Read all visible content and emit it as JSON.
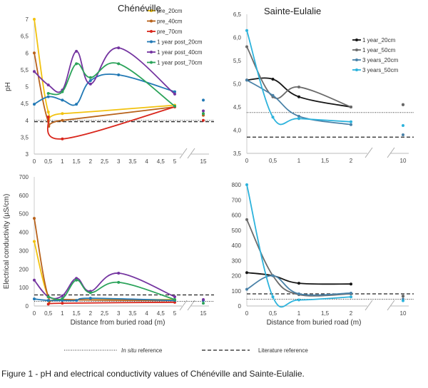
{
  "caption": "Figure 1 - pH and electrical conductivity values of Chénéville and Sainte-Eulalie.",
  "reference_legend": {
    "in_situ_italic": "In situ",
    "in_situ_rest": " reference",
    "literature": "Literature reference"
  },
  "chart_data": [
    {
      "id": "chen_ph",
      "type": "line",
      "title": "Chénéville",
      "ylabel": "pH",
      "xlabel": "",
      "ylim": [
        3,
        7
      ],
      "yticks": [
        "3",
        "3,5",
        "4",
        "4,5",
        "5",
        "5,5",
        "6",
        "6,5",
        "7"
      ],
      "xticks": [
        "0",
        "0,5",
        "1",
        "1,5",
        "2",
        "2,5",
        "3",
        "3,5",
        "4",
        "4,5",
        "5",
        "15"
      ],
      "x_break": [
        5,
        15
      ],
      "legend": "top-right",
      "references": {
        "in_situ": 4.0,
        "literature": 3.96
      },
      "series": [
        {
          "name": "pre_20cm",
          "color": "#f2c20f",
          "x": [
            0,
            0.5,
            1,
            5,
            15
          ],
          "y": [
            7.0,
            4.25,
            4.2,
            4.45,
            4.2
          ]
        },
        {
          "name": "pre_40cm",
          "color": "#b8621b",
          "x": [
            0,
            0.5,
            1,
            5,
            15
          ],
          "y": [
            6.0,
            3.97,
            4.0,
            4.4,
            4.15
          ]
        },
        {
          "name": "pre_70cm",
          "color": "#d9261c",
          "x": [
            0.5,
            1,
            5,
            15
          ],
          "y": [
            4.1,
            3.45,
            4.4,
            4.0
          ]
        },
        {
          "name": "1 year post_20cm",
          "color": "#2279b5",
          "x": [
            0,
            0.5,
            1,
            1.5,
            2,
            3,
            5,
            15
          ],
          "y": [
            4.48,
            4.7,
            4.6,
            4.48,
            5.18,
            5.35,
            4.85,
            4.6
          ]
        },
        {
          "name": "1 year post_40cm",
          "color": "#7434a0",
          "x": [
            0,
            0.5,
            1,
            1.5,
            2,
            3,
            5,
            15
          ],
          "y": [
            5.45,
            5.05,
            4.9,
            6.05,
            5.08,
            6.15,
            4.78,
            4.28
          ]
        },
        {
          "name": "1 year post_70cm",
          "color": "#2ba35a",
          "x": [
            0.5,
            1,
            1.5,
            2,
            3,
            5,
            15
          ],
          "y": [
            4.8,
            4.85,
            5.68,
            5.27,
            5.68,
            4.42,
            4.2
          ]
        }
      ]
    },
    {
      "id": "se_ph",
      "type": "line",
      "title": "Sainte-Eulalie",
      "ylabel": "",
      "xlabel": "",
      "ylim": [
        3.5,
        6.5
      ],
      "yticks": [
        "3,5",
        "4,0",
        "4,5",
        "5,0",
        "5,5",
        "6,0",
        "6,5"
      ],
      "xticks": [
        "0",
        "0,5",
        "1",
        "1,5",
        "2",
        "10"
      ],
      "x_break": [
        2,
        10
      ],
      "legend": "right",
      "references": {
        "in_situ": 4.38,
        "literature": 3.85
      },
      "series": [
        {
          "name": "1 year_20cm",
          "color": "#151515",
          "x": [
            0,
            0.5,
            1,
            2,
            10
          ],
          "y": [
            5.08,
            5.1,
            4.72,
            4.5,
            4.55
          ]
        },
        {
          "name": "1 year_50cm",
          "color": "#6b6b6b",
          "x": [
            0,
            0.5,
            1,
            2,
            10
          ],
          "y": [
            5.8,
            4.72,
            4.93,
            4.5,
            4.55
          ]
        },
        {
          "name": "3 years_20cm",
          "color": "#4a82a8",
          "x": [
            0,
            0.5,
            1,
            2,
            10
          ],
          "y": [
            5.08,
            4.75,
            4.3,
            4.12,
            3.9
          ]
        },
        {
          "name": "3 years_50cm",
          "color": "#2db3dc",
          "x": [
            0,
            0.5,
            1,
            2,
            10
          ],
          "y": [
            6.15,
            4.28,
            4.25,
            4.18,
            4.1
          ]
        }
      ]
    },
    {
      "id": "chen_ec",
      "type": "line",
      "title": "",
      "ylabel": "Electrical conductivity (µS/cm)",
      "xlabel": "Distance from buried road (m)",
      "ylim": [
        0,
        700
      ],
      "yticks": [
        "0",
        "100",
        "200",
        "300",
        "400",
        "500",
        "600",
        "700"
      ],
      "xticks": [
        "0",
        "0,5",
        "1",
        "1,5",
        "2",
        "2,5",
        "3",
        "3,5",
        "4",
        "4,5",
        "5",
        "15"
      ],
      "x_break": [
        5,
        15
      ],
      "references": {
        "in_situ": 25,
        "literature": 60
      },
      "series": [
        {
          "name": "pre_20cm",
          "color": "#f2c20f",
          "x": [
            0,
            0.5,
            1,
            5
          ],
          "y": [
            350,
            50,
            35,
            35
          ]
        },
        {
          "name": "pre_40cm",
          "color": "#b8621b",
          "x": [
            0,
            0.5,
            1,
            5
          ],
          "y": [
            475,
            50,
            35,
            30
          ]
        },
        {
          "name": "pre_70cm",
          "color": "#d9261c",
          "x": [
            0.5,
            1,
            5
          ],
          "y": [
            10,
            15,
            20
          ]
        },
        {
          "name": "1 year post_20cm",
          "color": "#2279b5",
          "x": [
            0,
            0.5,
            1,
            1.5,
            2,
            5,
            15
          ],
          "y": [
            38,
            30,
            30,
            30,
            42,
            30,
            30
          ]
        },
        {
          "name": "1 year post_40cm",
          "color": "#7434a0",
          "x": [
            0,
            0.5,
            1,
            1.5,
            2,
            3,
            5,
            15
          ],
          "y": [
            140,
            50,
            55,
            150,
            80,
            178,
            50,
            35
          ]
        },
        {
          "name": "1 year post_70cm",
          "color": "#2ba35a",
          "x": [
            0.5,
            1,
            1.5,
            2,
            3,
            5,
            15
          ],
          "y": [
            50,
            40,
            140,
            72,
            128,
            35,
            15
          ]
        }
      ]
    },
    {
      "id": "se_ec",
      "type": "line",
      "title": "",
      "ylabel": "",
      "xlabel": "Distance from buried road (m)",
      "ylim": [
        0,
        800
      ],
      "yticks": [
        "0",
        "100",
        "200",
        "300",
        "400",
        "500",
        "600",
        "700",
        "800"
      ],
      "xticks": [
        "0",
        "0,5",
        "1",
        "1,5",
        "2",
        "10"
      ],
      "x_break": [
        2,
        10
      ],
      "references": {
        "in_situ": 45,
        "literature": 80
      },
      "series": [
        {
          "name": "1 year_20cm",
          "color": "#151515",
          "x": [
            0,
            0.5,
            1,
            2,
            10
          ],
          "y": [
            220,
            200,
            150,
            145,
            65
          ]
        },
        {
          "name": "1 year_50cm",
          "color": "#6b6b6b",
          "x": [
            0,
            0.5,
            1,
            2,
            10
          ],
          "y": [
            570,
            200,
            75,
            80,
            65
          ]
        },
        {
          "name": "3 years_20cm",
          "color": "#4a82a8",
          "x": [
            0,
            0.5,
            1,
            2,
            10
          ],
          "y": [
            110,
            200,
            80,
            85,
            45
          ]
        },
        {
          "name": "3 years_50cm",
          "color": "#2db3dc",
          "x": [
            0,
            0.5,
            1,
            2,
            10
          ],
          "y": [
            800,
            60,
            40,
            60,
            35
          ]
        }
      ]
    }
  ]
}
